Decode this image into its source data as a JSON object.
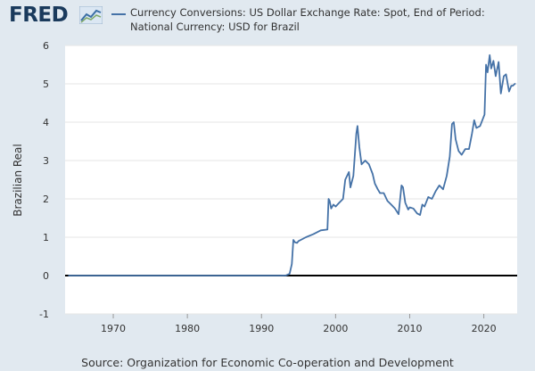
{
  "header": {
    "logo": "FRED",
    "legend": "Currency Conversions: US Dollar Exchange Rate: Spot, End of Period: National Currency: USD for Brazil"
  },
  "footer": {
    "source": "Source: Organization for Economic Co-operation and Development"
  },
  "colors": {
    "background": "#e1e9f0",
    "plot_background": "#ffffff",
    "series": "#4572a7",
    "gridline": "#e6e6e6",
    "zero_line": "#000000"
  },
  "chart_data": {
    "type": "line",
    "title": "Currency Conversions: US Dollar Exchange Rate: Spot, End of Period: National Currency: USD for Brazil",
    "xlabel": "",
    "ylabel": "Brazilian Real",
    "xlim": [
      1963.5,
      2024.5
    ],
    "ylim": [
      -1,
      6
    ],
    "x_ticks": [
      1970,
      1980,
      1990,
      2000,
      2010,
      2020
    ],
    "y_ticks": [
      -1,
      0,
      1,
      2,
      3,
      4,
      5,
      6
    ],
    "grid": true,
    "series": [
      {
        "name": "USD for Brazil",
        "x": [
          1964,
          1970,
          1980,
          1990,
          1992.5,
          1993.3,
          1993.8,
          1994.1,
          1994.3,
          1994.5,
          1994.8,
          1995,
          1996,
          1997,
          1998,
          1998.9,
          1999.05,
          1999.2,
          1999.4,
          1999.7,
          2000,
          2000.5,
          2001,
          2001.3,
          2001.8,
          2002,
          2002.4,
          2002.8,
          2002.95,
          2003.2,
          2003.5,
          2004,
          2004.5,
          2005,
          2005.3,
          2005.7,
          2006,
          2006.5,
          2007,
          2007.5,
          2008,
          2008.5,
          2008.9,
          2009.1,
          2009.4,
          2009.8,
          2010,
          2010.5,
          2011,
          2011.4,
          2011.7,
          2012,
          2012.5,
          2013,
          2013.5,
          2014,
          2014.5,
          2015,
          2015.4,
          2015.7,
          2015.95,
          2016.2,
          2016.6,
          2017,
          2017.5,
          2018,
          2018.4,
          2018.7,
          2019,
          2019.5,
          2020.1,
          2020.3,
          2020.5,
          2020.8,
          2021,
          2021.3,
          2021.6,
          2022,
          2022.3,
          2022.7,
          2023,
          2023.4,
          2023.7,
          2023.9,
          2024.2
        ],
        "y": [
          0,
          0,
          0,
          0,
          0,
          0.005,
          0.05,
          0.3,
          0.93,
          0.87,
          0.85,
          0.9,
          1.0,
          1.08,
          1.18,
          1.2,
          2.0,
          1.95,
          1.75,
          1.85,
          1.8,
          1.9,
          2.0,
          2.5,
          2.7,
          2.3,
          2.6,
          3.7,
          3.9,
          3.35,
          2.9,
          3.0,
          2.9,
          2.65,
          2.4,
          2.25,
          2.15,
          2.15,
          1.95,
          1.85,
          1.75,
          1.6,
          2.35,
          2.3,
          1.9,
          1.72,
          1.78,
          1.75,
          1.62,
          1.58,
          1.85,
          1.8,
          2.05,
          2.0,
          2.2,
          2.35,
          2.25,
          2.6,
          3.1,
          3.95,
          4.0,
          3.55,
          3.25,
          3.15,
          3.3,
          3.3,
          3.7,
          4.05,
          3.85,
          3.9,
          4.2,
          5.5,
          5.3,
          5.75,
          5.4,
          5.6,
          5.2,
          5.57,
          4.75,
          5.2,
          5.25,
          4.8,
          4.95,
          4.95,
          5.0
        ]
      }
    ]
  }
}
